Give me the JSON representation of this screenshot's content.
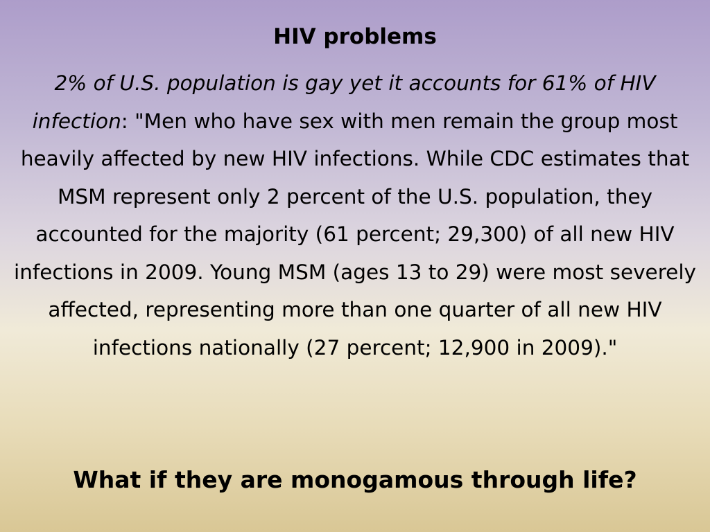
{
  "slide": {
    "title": "HIV problems",
    "body": {
      "lead_italic": "2% of U.S. population is gay yet it accounts for 61% of HIV infection",
      "lead_colon": ":",
      "quote": "  \"Men who have sex with men remain the group most heavily affected by new HIV infections. While CDC estimates that MSM represent only 2 percent of the U.S. population, they accounted for the majority (61 percent; 29,300) of all new HIV infections in 2009. Young MSM (ages 13 to 29) were most severely affected, representing more than one quarter of all new HIV infections nationally (27 percent; 12,900 in 2009).\""
    },
    "question": "What if they are monogamous through life?"
  }
}
